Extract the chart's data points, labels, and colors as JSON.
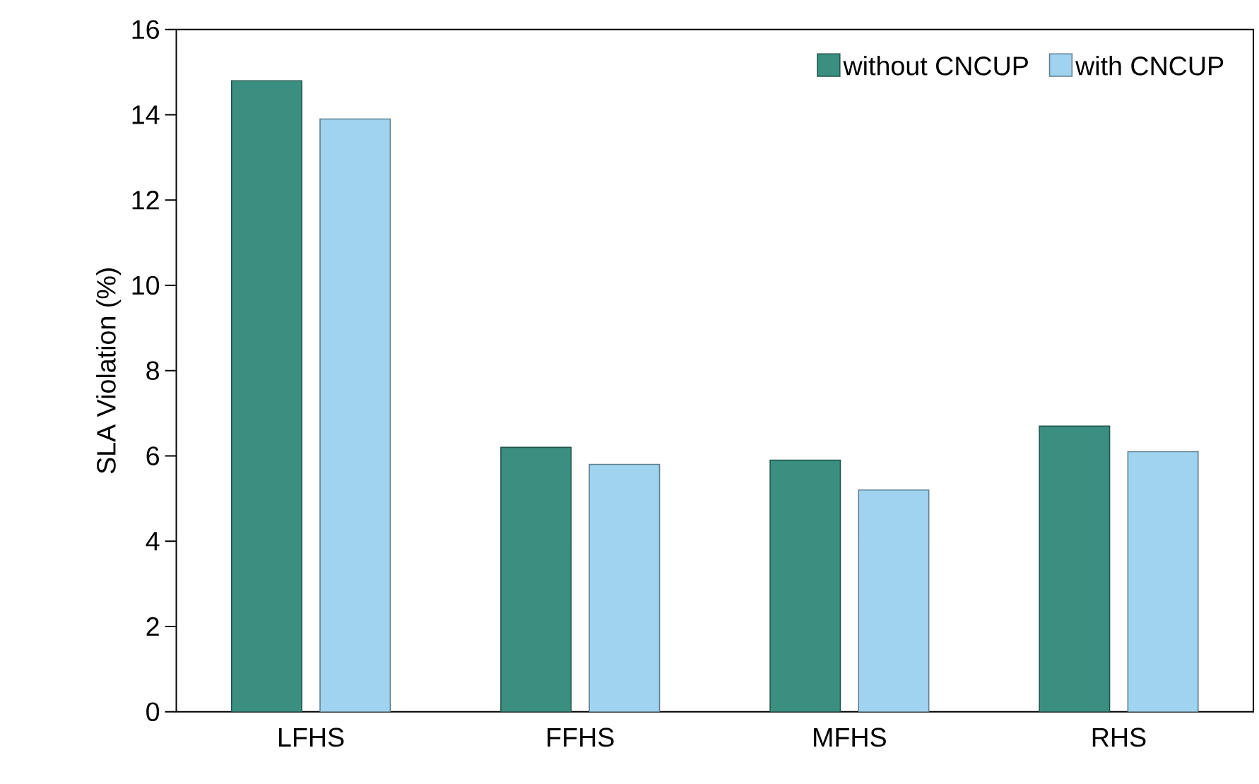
{
  "chart_data": {
    "type": "bar",
    "ylabel": "SLA Violation (%)",
    "categories": [
      "LFHS",
      "FFHS",
      "MFHS",
      "RHS"
    ],
    "series": [
      {
        "name": "without CNCUP",
        "color": "#3a8f80",
        "values": [
          14.8,
          6.2,
          5.9,
          6.7
        ]
      },
      {
        "name": "with CNCUP",
        "color": "#9fd3ef",
        "values": [
          13.9,
          5.8,
          5.2,
          6.1
        ]
      }
    ],
    "ylim": [
      0,
      16
    ],
    "yticks": [
      0,
      2,
      4,
      6,
      8,
      10,
      12,
      14,
      16
    ],
    "grid": false,
    "legend": "top right"
  }
}
